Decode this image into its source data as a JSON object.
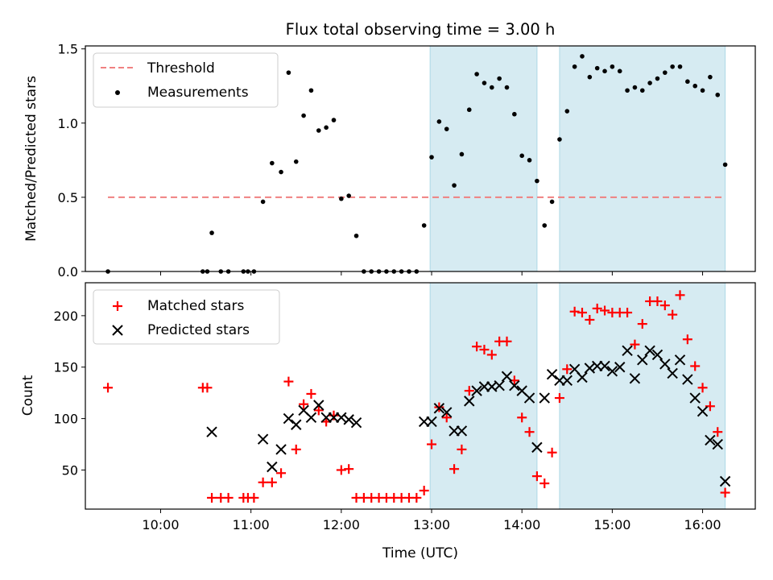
{
  "chart_data": {
    "type": "scatter",
    "title": "Flux total observing time = 3.00 h",
    "xlabel": "Time (UTC)",
    "x_unit": "hours UTC",
    "xlim": [
      "09:10",
      "16:35"
    ],
    "x_ticks": [
      "10:00",
      "11:00",
      "12:00",
      "13:00",
      "14:00",
      "15:00",
      "16:00"
    ],
    "shaded_intervals": [
      {
        "start": "12:59",
        "end": "14:10",
        "color": "#add8e6"
      },
      {
        "start": "14:25",
        "end": "16:15",
        "color": "#add8e6"
      }
    ],
    "panels": [
      {
        "ylabel": "Matched/Predicted stars",
        "ylim": [
          0,
          1.52
        ],
        "y_ticks": [
          "0.0",
          "0.5",
          "1.0",
          "1.5"
        ],
        "legend_position": "upper-left",
        "series": [
          {
            "name": "Threshold",
            "kind": "line",
            "style": "dashed",
            "color": "#f08080",
            "x": [
              "09:25",
              "16:15"
            ],
            "y": [
              0.5,
              0.5
            ]
          },
          {
            "name": "Measurements",
            "kind": "dot",
            "color": "#000000",
            "x": [
              "09:25",
              "10:28",
              "10:31",
              "10:34",
              "10:40",
              "10:45",
              "10:55",
              "10:58",
              "11:02",
              "11:08",
              "11:14",
              "11:20",
              "11:25",
              "11:30",
              "11:35",
              "11:40",
              "11:45",
              "11:50",
              "11:55",
              "12:00",
              "12:05",
              "12:10",
              "12:15",
              "12:20",
              "12:25",
              "12:30",
              "12:35",
              "12:40",
              "12:45",
              "12:50",
              "12:55",
              "13:00",
              "13:05",
              "13:10",
              "13:15",
              "13:20",
              "13:25",
              "13:30",
              "13:35",
              "13:40",
              "13:45",
              "13:50",
              "13:55",
              "14:00",
              "14:05",
              "14:10",
              "14:15",
              "14:20",
              "14:25",
              "14:30",
              "14:35",
              "14:40",
              "14:45",
              "14:50",
              "14:55",
              "15:00",
              "15:05",
              "15:10",
              "15:15",
              "15:20",
              "15:25",
              "15:30",
              "15:35",
              "15:40",
              "15:45",
              "15:50",
              "15:55",
              "16:00",
              "16:05",
              "16:10",
              "16:15"
            ],
            "y": [
              0,
              0,
              0,
              0.26,
              0,
              0,
              0,
              0,
              0,
              0.47,
              0.73,
              0.67,
              1.34,
              0.74,
              1.05,
              1.22,
              0.95,
              0.97,
              1.02,
              0.49,
              0.51,
              0.24,
              0,
              0,
              0,
              0,
              0,
              0,
              0,
              0,
              0.31,
              0.77,
              1.01,
              0.96,
              0.58,
              0.79,
              1.09,
              1.33,
              1.27,
              1.24,
              1.3,
              1.24,
              1.06,
              0.78,
              0.75,
              0.61,
              0.31,
              0.47,
              0.89,
              1.08,
              1.38,
              1.45,
              1.31,
              1.37,
              1.35,
              1.38,
              1.35,
              1.22,
              1.24,
              1.22,
              1.27,
              1.3,
              1.34,
              1.38,
              1.38,
              1.28,
              1.25,
              1.22,
              1.31,
              1.19,
              0.72
            ]
          }
        ]
      },
      {
        "ylabel": "Count",
        "ylim": [
          12,
          232
        ],
        "y_ticks": [
          "50",
          "100",
          "150",
          "200"
        ],
        "legend_position": "upper-left",
        "series": [
          {
            "name": "Matched stars",
            "kind": "plus",
            "color": "#ff0000",
            "x": [
              "09:25",
              "10:28",
              "10:31",
              "10:34",
              "10:40",
              "10:45",
              "10:55",
              "10:58",
              "11:02",
              "11:08",
              "11:14",
              "11:20",
              "11:25",
              "11:30",
              "11:35",
              "11:40",
              "11:45",
              "11:50",
              "11:55",
              "12:00",
              "12:05",
              "12:10",
              "12:15",
              "12:20",
              "12:25",
              "12:30",
              "12:35",
              "12:40",
              "12:45",
              "12:50",
              "12:55",
              "13:00",
              "13:05",
              "13:10",
              "13:15",
              "13:20",
              "13:25",
              "13:30",
              "13:35",
              "13:40",
              "13:45",
              "13:50",
              "13:55",
              "14:00",
              "14:05",
              "14:10",
              "14:15",
              "14:20",
              "14:25",
              "14:30",
              "14:35",
              "14:40",
              "14:45",
              "14:50",
              "14:55",
              "15:00",
              "15:05",
              "15:10",
              "15:15",
              "15:20",
              "15:25",
              "15:30",
              "15:35",
              "15:40",
              "15:45",
              "15:50",
              "15:55",
              "16:00",
              "16:05",
              "16:10",
              "16:15"
            ],
            "y": [
              130,
              130,
              130,
              23,
              23,
              23,
              23,
              23,
              23,
              38,
              38,
              47,
              136,
              70,
              114,
              124,
              108,
              97,
              103,
              50,
              51,
              23,
              23,
              23,
              23,
              23,
              23,
              23,
              23,
              23,
              30,
              75,
              111,
              101,
              51,
              70,
              127,
              170,
              167,
              162,
              175,
              175,
              137,
              101,
              87,
              44,
              37,
              67,
              120,
              148,
              204,
              203,
              196,
              207,
              205,
              203,
              203,
              203,
              172,
              192,
              214,
              214,
              210,
              201,
              220,
              177,
              151,
              130,
              112,
              87,
              28
            ]
          },
          {
            "name": "Predicted stars",
            "kind": "x",
            "color": "#000000",
            "x": [
              "10:34",
              "11:08",
              "11:14",
              "11:20",
              "11:25",
              "11:30",
              "11:35",
              "11:40",
              "11:45",
              "11:50",
              "11:55",
              "12:00",
              "12:05",
              "12:10",
              "12:55",
              "13:00",
              "13:05",
              "13:10",
              "13:15",
              "13:20",
              "13:25",
              "13:30",
              "13:35",
              "13:40",
              "13:45",
              "13:50",
              "13:55",
              "14:00",
              "14:05",
              "14:10",
              "14:15",
              "14:20",
              "14:25",
              "14:30",
              "14:35",
              "14:40",
              "14:45",
              "14:50",
              "14:55",
              "15:00",
              "15:05",
              "15:10",
              "15:15",
              "15:20",
              "15:25",
              "15:30",
              "15:35",
              "15:40",
              "15:45",
              "15:50",
              "15:55",
              "16:00",
              "16:05",
              "16:10",
              "16:15"
            ],
            "y": [
              87,
              80,
              53,
              70,
              100,
              94,
              108,
              101,
              113,
              101,
              101,
              101,
              99,
              96,
              97,
              97,
              110,
              106,
              88,
              88,
              117,
              127,
              131,
              131,
              132,
              141,
              132,
              127,
              120,
              72,
              120,
              143,
              137,
              137,
              148,
              140,
              149,
              151,
              151,
              146,
              150,
              166,
              139,
              157,
              166,
              162,
              153,
              144,
              157,
              138,
              120,
              107,
              79,
              75,
              39
            ]
          }
        ]
      }
    ]
  }
}
